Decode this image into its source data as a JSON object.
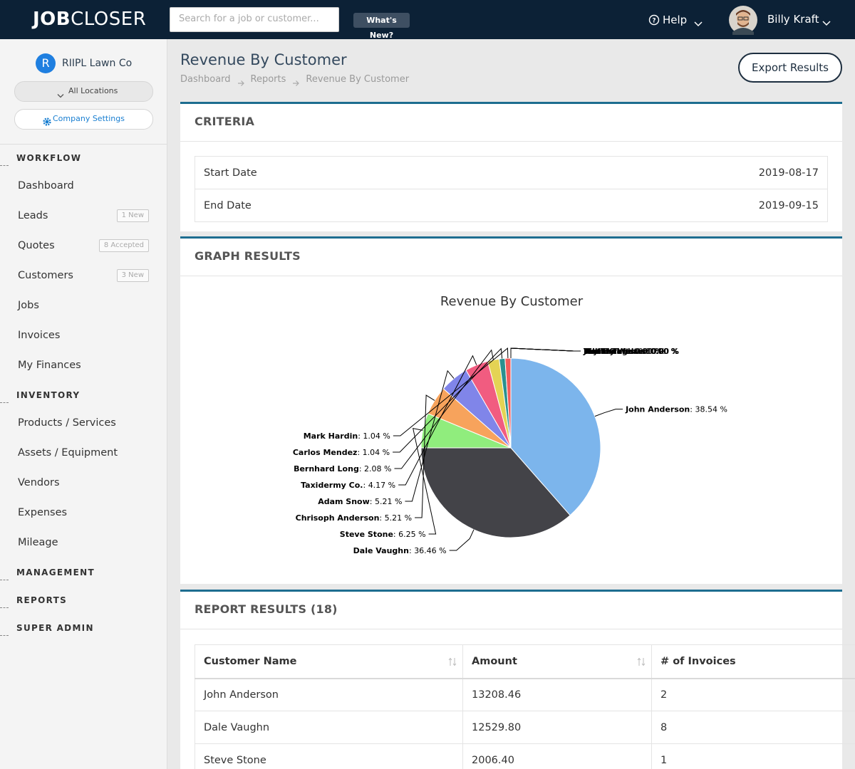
{
  "header": {
    "logo_bold": "JOB",
    "logo_light": "CLOSER",
    "search_placeholder": "Search for a job or customer...",
    "whats_new": "What's New?",
    "help": "Help",
    "user_name": "Billy Kraft"
  },
  "sidebar": {
    "company_initial": "R",
    "company": "RIIPL Lawn Co",
    "locations": "All Locations",
    "settings": "Company Settings",
    "sections": [
      {
        "title": "WORKFLOW",
        "items": [
          {
            "label": "Dashboard"
          },
          {
            "label": "Leads",
            "badge": "1 New"
          },
          {
            "label": "Quotes",
            "badge": "8 Accepted"
          },
          {
            "label": "Customers",
            "badge": "3 New"
          },
          {
            "label": "Jobs"
          },
          {
            "label": "Invoices"
          },
          {
            "label": "My Finances"
          }
        ]
      },
      {
        "title": "INVENTORY",
        "items": [
          {
            "label": "Products / Services"
          },
          {
            "label": "Assets / Equipment"
          },
          {
            "label": "Vendors"
          },
          {
            "label": "Expenses"
          },
          {
            "label": "Mileage"
          }
        ]
      },
      {
        "title": "MANAGEMENT"
      },
      {
        "title": "REPORTS"
      },
      {
        "title": "SUPER ADMIN"
      }
    ]
  },
  "page": {
    "title": "Revenue By Customer",
    "breadcrumbs": [
      "Dashboard",
      "Reports",
      "Revenue By Customer"
    ],
    "export": "Export Results"
  },
  "criteria": {
    "heading": "CRITERIA",
    "rows": [
      [
        "Start Date",
        "2019-08-17"
      ],
      [
        "End Date",
        "2019-09-15"
      ]
    ]
  },
  "graph": {
    "heading": "GRAPH RESULTS"
  },
  "chart_data": {
    "type": "pie",
    "title": "Revenue By Customer",
    "categories": [
      "John Anderson",
      "Dale Vaughn",
      "Steve Stone",
      "Chrisoph Anderson",
      "Adam Snow",
      "Taxidermy Co.",
      "Bernhard Long",
      "Carlos Mendez",
      "Mark Hardin",
      "Matt Kraft",
      "Justin Thomas",
      "Bill Thomason",
      "Tommy Walter",
      "Tim Ortega",
      "Taylor Teel"
    ],
    "values": [
      38.54,
      36.46,
      6.25,
      5.21,
      5.21,
      4.17,
      2.08,
      1.04,
      1.04,
      0,
      0,
      0,
      0,
      0,
      0
    ],
    "value_labels": [
      "38.54 %",
      "36.46 %",
      "6.25 %",
      "5.21 %",
      "5.21 %",
      "4.17 %",
      "2.08 %",
      "1.04 %",
      "1.04 %",
      "0.00 %",
      "0.00 %",
      "0.00 %",
      "0.00 %",
      "0.00 %",
      "0.00 %"
    ],
    "label_separator": ": ",
    "colors": [
      "#7cb5ec",
      "#434348",
      "#90ed7d",
      "#f7a35c",
      "#8085e9",
      "#f15c80",
      "#e4d354",
      "#2b908f",
      "#f45b5b",
      "#91e8e1",
      "#7cb5ec",
      "#434348",
      "#90ed7d",
      "#f7a35c",
      "#8085e9"
    ]
  },
  "report": {
    "heading": "REPORT RESULTS (18)",
    "columns": [
      "Customer Name",
      "Amount",
      "# of Invoices"
    ],
    "rows": [
      [
        "John Anderson",
        "13208.46",
        "2"
      ],
      [
        "Dale Vaughn",
        "12529.80",
        "8"
      ],
      [
        "Steve Stone",
        "2006.40",
        "1"
      ]
    ]
  }
}
